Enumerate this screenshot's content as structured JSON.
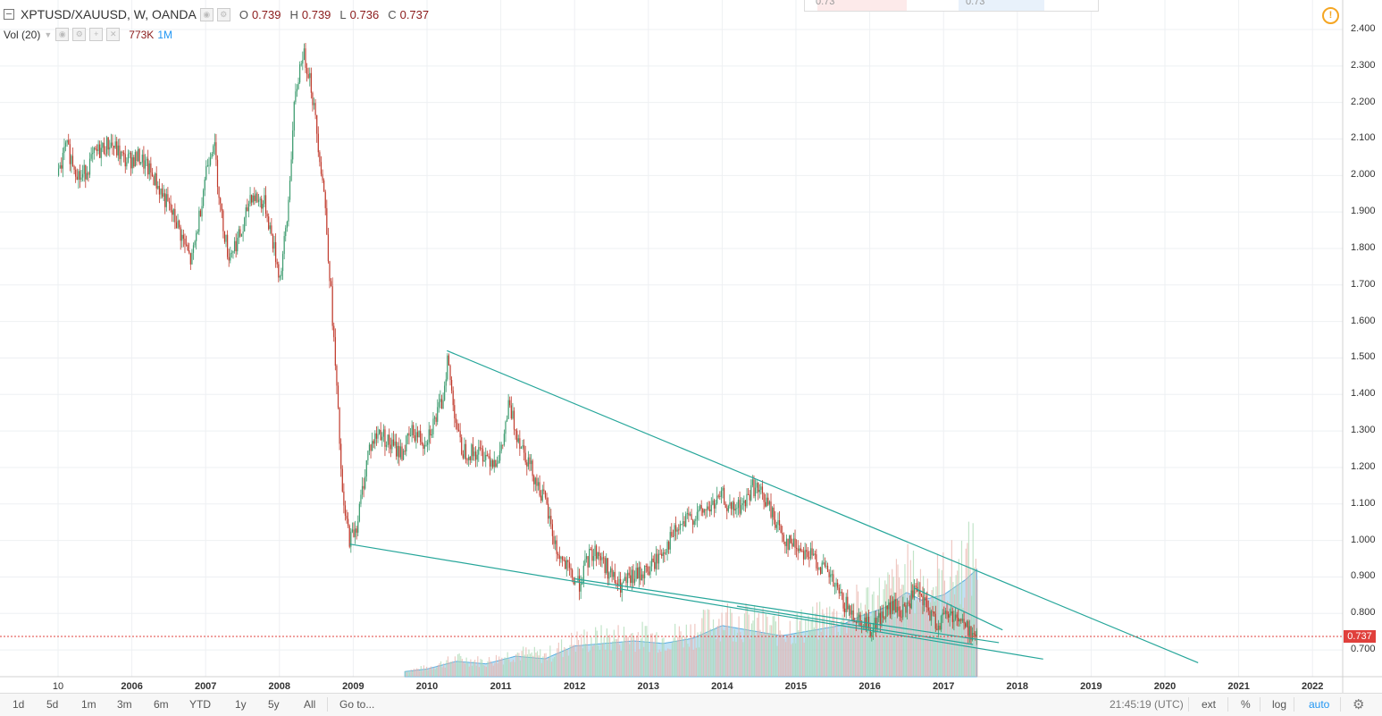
{
  "header": {
    "title": "XPTUSD/XAUUSD, W, OANDA",
    "o_label": "O",
    "o_value": "0.739",
    "h_label": "H",
    "h_value": "0.739",
    "l_label": "L",
    "l_value": "0.736",
    "c_label": "C",
    "c_value": "0.737"
  },
  "volume": {
    "label": "Vol (20)",
    "value": "773K",
    "ma": "1M"
  },
  "panel": {
    "left_value": "0.73",
    "right_value": "0.73"
  },
  "price_tag": "0.737",
  "bottom_bar": {
    "timeframes": [
      "1d",
      "5d",
      "1m",
      "3m",
      "6m",
      "YTD",
      "1y",
      "5y",
      "All"
    ],
    "goto": "Go to...",
    "clock": "21:45:19 (UTC)",
    "ext": "ext",
    "percent": "%",
    "log": "log",
    "auto": "auto"
  },
  "colors": {
    "up": "#3c9b6e",
    "down": "#c0392b",
    "trendline": "#26a69a",
    "volume": "#7fbfe0",
    "price_line": "#e0403c"
  },
  "chart_data": {
    "type": "candlestick",
    "series_name": "XPTUSD/XAUUSD",
    "y_ticks": [
      "2.400",
      "2.300",
      "2.200",
      "2.100",
      "2.000",
      "1.900",
      "1.800",
      "1.700",
      "1.600",
      "1.500",
      "1.400",
      "1.300",
      "1.200",
      "1.100",
      "1.000",
      "0.900",
      "0.800",
      "0.700"
    ],
    "x_ticks": [
      "10",
      "2006",
      "2007",
      "2008",
      "2009",
      "2010",
      "2011",
      "2012",
      "2013",
      "2014",
      "2015",
      "2016",
      "2017",
      "2018",
      "2019",
      "2020",
      "2021",
      "2022"
    ],
    "ylim": [
      0.64,
      2.44
    ],
    "x_range": [
      2005.0,
      2022.6
    ],
    "current_price": 0.737,
    "path": [
      [
        2005.0,
        2.0
      ],
      [
        2005.1,
        2.08
      ],
      [
        2005.3,
        1.99
      ],
      [
        2005.5,
        2.06
      ],
      [
        2005.7,
        2.09
      ],
      [
        2005.9,
        2.04
      ],
      [
        2006.1,
        2.05
      ],
      [
        2006.3,
        1.99
      ],
      [
        2006.6,
        1.87
      ],
      [
        2006.8,
        1.76
      ],
      [
        2006.9,
        1.88
      ],
      [
        2007.0,
        2.02
      ],
      [
        2007.1,
        2.1
      ],
      [
        2007.2,
        1.9
      ],
      [
        2007.3,
        1.78
      ],
      [
        2007.5,
        1.85
      ],
      [
        2007.6,
        1.95
      ],
      [
        2007.8,
        1.92
      ],
      [
        2007.9,
        1.82
      ],
      [
        2008.0,
        1.72
      ],
      [
        2008.1,
        1.88
      ],
      [
        2008.15,
        2.05
      ],
      [
        2008.2,
        2.2
      ],
      [
        2008.3,
        2.34
      ],
      [
        2008.4,
        2.28
      ],
      [
        2008.5,
        2.12
      ],
      [
        2008.6,
        1.95
      ],
      [
        2008.7,
        1.65
      ],
      [
        2008.8,
        1.3
      ],
      [
        2008.85,
        1.1
      ],
      [
        2008.95,
        1.0
      ],
      [
        2009.05,
        1.05
      ],
      [
        2009.2,
        1.25
      ],
      [
        2009.35,
        1.3
      ],
      [
        2009.5,
        1.26
      ],
      [
        2009.65,
        1.24
      ],
      [
        2009.8,
        1.3
      ],
      [
        2009.95,
        1.27
      ],
      [
        2010.1,
        1.33
      ],
      [
        2010.2,
        1.38
      ],
      [
        2010.27,
        1.5
      ],
      [
        2010.33,
        1.4
      ],
      [
        2010.45,
        1.25
      ],
      [
        2010.6,
        1.24
      ],
      [
        2010.75,
        1.24
      ],
      [
        2010.9,
        1.22
      ],
      [
        2011.0,
        1.24
      ],
      [
        2011.1,
        1.37
      ],
      [
        2011.2,
        1.3
      ],
      [
        2011.4,
        1.2
      ],
      [
        2011.6,
        1.1
      ],
      [
        2011.75,
        0.97
      ],
      [
        2011.95,
        0.9
      ],
      [
        2012.05,
        0.88
      ],
      [
        2012.2,
        0.96
      ],
      [
        2012.3,
        0.97
      ],
      [
        2012.5,
        0.9
      ],
      [
        2012.6,
        0.87
      ],
      [
        2012.8,
        0.9
      ],
      [
        2013.0,
        0.92
      ],
      [
        2013.15,
        0.96
      ],
      [
        2013.35,
        1.02
      ],
      [
        2013.55,
        1.06
      ],
      [
        2013.75,
        1.08
      ],
      [
        2013.9,
        1.1
      ],
      [
        2014.0,
        1.12
      ],
      [
        2014.1,
        1.08
      ],
      [
        2014.3,
        1.1
      ],
      [
        2014.4,
        1.15
      ],
      [
        2014.55,
        1.12
      ],
      [
        2014.7,
        1.06
      ],
      [
        2014.85,
        1.0
      ],
      [
        2015.05,
        0.98
      ],
      [
        2015.25,
        0.95
      ],
      [
        2015.45,
        0.9
      ],
      [
        2015.6,
        0.84
      ],
      [
        2015.75,
        0.8
      ],
      [
        2015.9,
        0.78
      ],
      [
        2016.0,
        0.76
      ],
      [
        2016.15,
        0.79
      ],
      [
        2016.3,
        0.82
      ],
      [
        2016.45,
        0.8
      ],
      [
        2016.6,
        0.86
      ],
      [
        2016.75,
        0.82
      ],
      [
        2016.9,
        0.77
      ],
      [
        2017.05,
        0.8
      ],
      [
        2017.2,
        0.79
      ],
      [
        2017.3,
        0.76
      ],
      [
        2017.45,
        0.737
      ]
    ],
    "volume_path": [
      [
        2009.7,
        0.02
      ],
      [
        2010.0,
        0.03
      ],
      [
        2010.4,
        0.06
      ],
      [
        2010.8,
        0.05
      ],
      [
        2011.2,
        0.08
      ],
      [
        2011.6,
        0.07
      ],
      [
        2012.0,
        0.12
      ],
      [
        2012.4,
        0.13
      ],
      [
        2012.8,
        0.14
      ],
      [
        2013.2,
        0.13
      ],
      [
        2013.6,
        0.15
      ],
      [
        2014.0,
        0.2
      ],
      [
        2014.4,
        0.18
      ],
      [
        2014.8,
        0.16
      ],
      [
        2015.2,
        0.18
      ],
      [
        2015.6,
        0.2
      ],
      [
        2015.9,
        0.24
      ],
      [
        2016.2,
        0.27
      ],
      [
        2016.5,
        0.33
      ],
      [
        2016.7,
        0.3
      ],
      [
        2017.0,
        0.32
      ],
      [
        2017.3,
        0.38
      ],
      [
        2017.45,
        0.42
      ]
    ],
    "trendlines": [
      {
        "from": [
          2010.27,
          1.52
        ],
        "to": [
          2020.45,
          0.665
        ]
      },
      {
        "from": [
          2008.95,
          0.99
        ],
        "to": [
          2018.35,
          0.675
        ]
      },
      {
        "from": [
          2012.0,
          0.895
        ],
        "to": [
          2017.75,
          0.72
        ]
      },
      {
        "from": [
          2014.2,
          0.82
        ],
        "to": [
          2017.4,
          0.715
        ]
      },
      {
        "from": [
          2016.6,
          0.87
        ],
        "to": [
          2017.8,
          0.755
        ]
      }
    ]
  }
}
